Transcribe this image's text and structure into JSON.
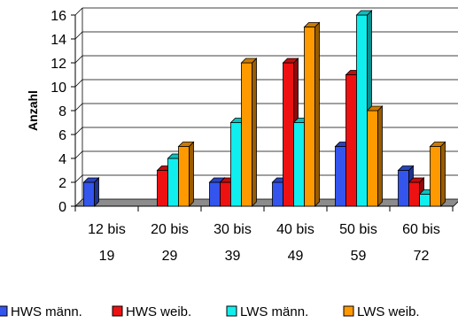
{
  "chart_data": {
    "type": "bar",
    "ylabel": "Anzahl",
    "xlabel": "",
    "ylim": [
      0,
      16
    ],
    "y_ticks": [
      0,
      2,
      4,
      6,
      8,
      10,
      12,
      14,
      16
    ],
    "grid": true,
    "legend_position": "bottom",
    "categories": [
      [
        "12 bis",
        "19"
      ],
      [
        "20 bis",
        "29"
      ],
      [
        "30 bis",
        "39"
      ],
      [
        "40 bis",
        "49"
      ],
      [
        "50 bis",
        "59"
      ],
      [
        "60 bis",
        "72"
      ]
    ],
    "series": [
      {
        "name": "HWS männ.",
        "color": "#3355ee",
        "values": [
          2,
          0,
          2,
          2,
          5,
          3
        ]
      },
      {
        "name": "HWS weib.",
        "color": "#ee1111",
        "values": [
          0,
          3,
          2,
          12,
          11,
          2
        ]
      },
      {
        "name": "LWS männ.",
        "color": "#11eeee",
        "values": [
          0,
          4,
          7,
          7,
          16,
          1
        ]
      },
      {
        "name": "LWS weib.",
        "color": "#ff9900",
        "values": [
          0,
          5,
          12,
          15,
          8,
          5
        ]
      }
    ]
  }
}
